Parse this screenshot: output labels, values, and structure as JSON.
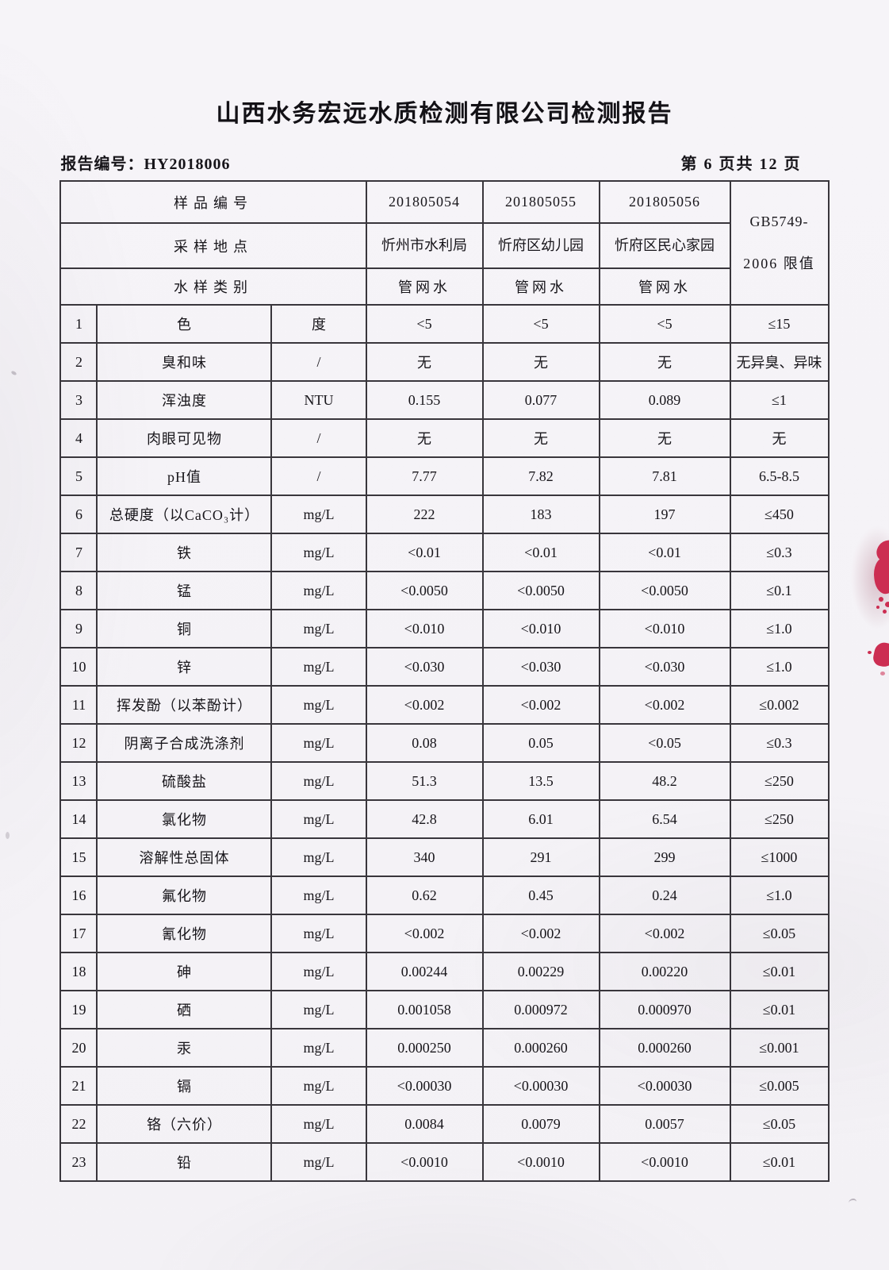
{
  "page": {
    "title": "山西水务宏远水质检测有限公司检测报告",
    "report_no": "报告编号：HY2018006",
    "page_indicator": "第 6 页共 12 页"
  },
  "table": {
    "header": {
      "sample_id_label": "样品编号",
      "sample_ids": [
        "201805054",
        "201805055",
        "201805056"
      ],
      "location_label": "采样地点",
      "locations": [
        "忻州市水利局",
        "忻府区幼儿园",
        "忻府区民心家园"
      ],
      "type_label": "水样类别",
      "types": [
        "管网水",
        "管网水",
        "管网水"
      ],
      "limit_line1": "GB5749-",
      "limit_line2": "2006 限值"
    },
    "rows": [
      {
        "no": "1",
        "item": "色",
        "unit": "度",
        "v1": "<5",
        "v2": "<5",
        "v3": "<5",
        "limit": "≤15"
      },
      {
        "no": "2",
        "item": "臭和味",
        "unit": "/",
        "v1": "无",
        "v2": "无",
        "v3": "无",
        "limit": "无异臭、异味"
      },
      {
        "no": "3",
        "item": "浑浊度",
        "unit": "NTU",
        "v1": "0.155",
        "v2": "0.077",
        "v3": "0.089",
        "limit": "≤1"
      },
      {
        "no": "4",
        "item": "肉眼可见物",
        "unit": "/",
        "v1": "无",
        "v2": "无",
        "v3": "无",
        "limit": "无"
      },
      {
        "no": "5",
        "item": "pH值",
        "unit": "/",
        "v1": "7.77",
        "v2": "7.82",
        "v3": "7.81",
        "limit": "6.5-8.5"
      },
      {
        "no": "6",
        "item": "总硬度（以CaCO₃计）",
        "unit": "mg/L",
        "v1": "222",
        "v2": "183",
        "v3": "197",
        "limit": "≤450"
      },
      {
        "no": "7",
        "item": "铁",
        "unit": "mg/L",
        "v1": "<0.01",
        "v2": "<0.01",
        "v3": "<0.01",
        "limit": "≤0.3"
      },
      {
        "no": "8",
        "item": "锰",
        "unit": "mg/L",
        "v1": "<0.0050",
        "v2": "<0.0050",
        "v3": "<0.0050",
        "limit": "≤0.1"
      },
      {
        "no": "9",
        "item": "铜",
        "unit": "mg/L",
        "v1": "<0.010",
        "v2": "<0.010",
        "v3": "<0.010",
        "limit": "≤1.0"
      },
      {
        "no": "10",
        "item": "锌",
        "unit": "mg/L",
        "v1": "<0.030",
        "v2": "<0.030",
        "v3": "<0.030",
        "limit": "≤1.0"
      },
      {
        "no": "11",
        "item": "挥发酚（以苯酚计）",
        "unit": "mg/L",
        "v1": "<0.002",
        "v2": "<0.002",
        "v3": "<0.002",
        "limit": "≤0.002"
      },
      {
        "no": "12",
        "item": "阴离子合成洗涤剂",
        "unit": "mg/L",
        "v1": "0.08",
        "v2": "0.05",
        "v3": "<0.05",
        "limit": "≤0.3"
      },
      {
        "no": "13",
        "item": "硫酸盐",
        "unit": "mg/L",
        "v1": "51.3",
        "v2": "13.5",
        "v3": "48.2",
        "limit": "≤250"
      },
      {
        "no": "14",
        "item": "氯化物",
        "unit": "mg/L",
        "v1": "42.8",
        "v2": "6.01",
        "v3": "6.54",
        "limit": "≤250"
      },
      {
        "no": "15",
        "item": "溶解性总固体",
        "unit": "mg/L",
        "v1": "340",
        "v2": "291",
        "v3": "299",
        "limit": "≤1000"
      },
      {
        "no": "16",
        "item": "氟化物",
        "unit": "mg/L",
        "v1": "0.62",
        "v2": "0.45",
        "v3": "0.24",
        "limit": "≤1.0"
      },
      {
        "no": "17",
        "item": "氰化物",
        "unit": "mg/L",
        "v1": "<0.002",
        "v2": "<0.002",
        "v3": "<0.002",
        "limit": "≤0.05"
      },
      {
        "no": "18",
        "item": "砷",
        "unit": "mg/L",
        "v1": "0.00244",
        "v2": "0.00229",
        "v3": "0.00220",
        "limit": "≤0.01"
      },
      {
        "no": "19",
        "item": "硒",
        "unit": "mg/L",
        "v1": "0.001058",
        "v2": "0.000972",
        "v3": "0.000970",
        "limit": "≤0.01"
      },
      {
        "no": "20",
        "item": "汞",
        "unit": "mg/L",
        "v1": "0.000250",
        "v2": "0.000260",
        "v3": "0.000260",
        "limit": "≤0.001"
      },
      {
        "no": "21",
        "item": "镉",
        "unit": "mg/L",
        "v1": "<0.00030",
        "v2": "<0.00030",
        "v3": "<0.00030",
        "limit": "≤0.005"
      },
      {
        "no": "22",
        "item": "铬（六价）",
        "unit": "mg/L",
        "v1": "0.0084",
        "v2": "0.0079",
        "v3": "0.0057",
        "limit": "≤0.05"
      },
      {
        "no": "23",
        "item": "铅",
        "unit": "mg/L",
        "v1": "<0.0010",
        "v2": "<0.0010",
        "v3": "<0.0010",
        "limit": "≤0.01"
      }
    ]
  },
  "artifacts": {
    "ink_blot_color": "#cc2e52"
  }
}
